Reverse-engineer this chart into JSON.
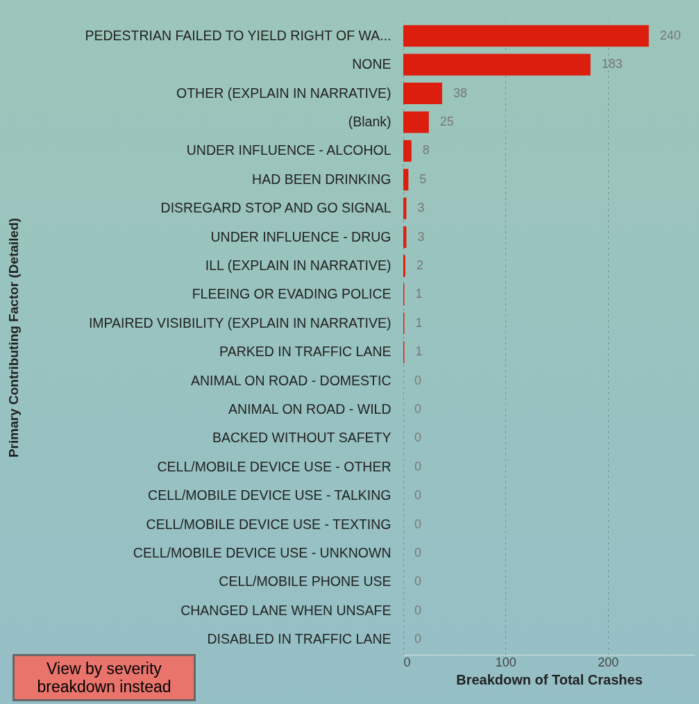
{
  "chart_data": {
    "type": "bar",
    "orientation": "horizontal",
    "ylabel": "Primary Contributing Factor (Detailed)",
    "xlabel": "Breakdown of Total Crashes",
    "categories": [
      "PEDESTRIAN FAILED TO YIELD RIGHT OF WA...",
      "NONE",
      "OTHER (EXPLAIN IN NARRATIVE)",
      "(Blank)",
      "UNDER INFLUENCE - ALCOHOL",
      "HAD BEEN DRINKING",
      "DISREGARD STOP AND GO SIGNAL",
      "UNDER INFLUENCE - DRUG",
      "ILL (EXPLAIN IN NARRATIVE)",
      "FLEEING OR EVADING POLICE",
      "IMPAIRED VISIBILITY (EXPLAIN IN NARRATIVE)",
      "PARKED IN TRAFFIC LANE",
      "ANIMAL ON ROAD - DOMESTIC",
      "ANIMAL ON ROAD - WILD",
      "BACKED WITHOUT SAFETY",
      "CELL/MOBILE DEVICE USE - OTHER",
      "CELL/MOBILE DEVICE USE - TALKING",
      "CELL/MOBILE DEVICE USE - TEXTING",
      "CELL/MOBILE DEVICE USE - UNKNOWN",
      "CELL/MOBILE PHONE USE",
      "CHANGED LANE WHEN UNSAFE",
      "DISABLED IN TRAFFIC LANE"
    ],
    "values": [
      240,
      183,
      38,
      25,
      8,
      5,
      3,
      3,
      2,
      1,
      1,
      1,
      0,
      0,
      0,
      0,
      0,
      0,
      0,
      0,
      0,
      0
    ],
    "color": "#dc1e0f",
    "xlim": [
      0,
      285
    ],
    "xticks": [
      0,
      100,
      200
    ],
    "grid": "x",
    "data_labels": true,
    "annotations": [
      "View by severity breakdown instead"
    ]
  }
}
